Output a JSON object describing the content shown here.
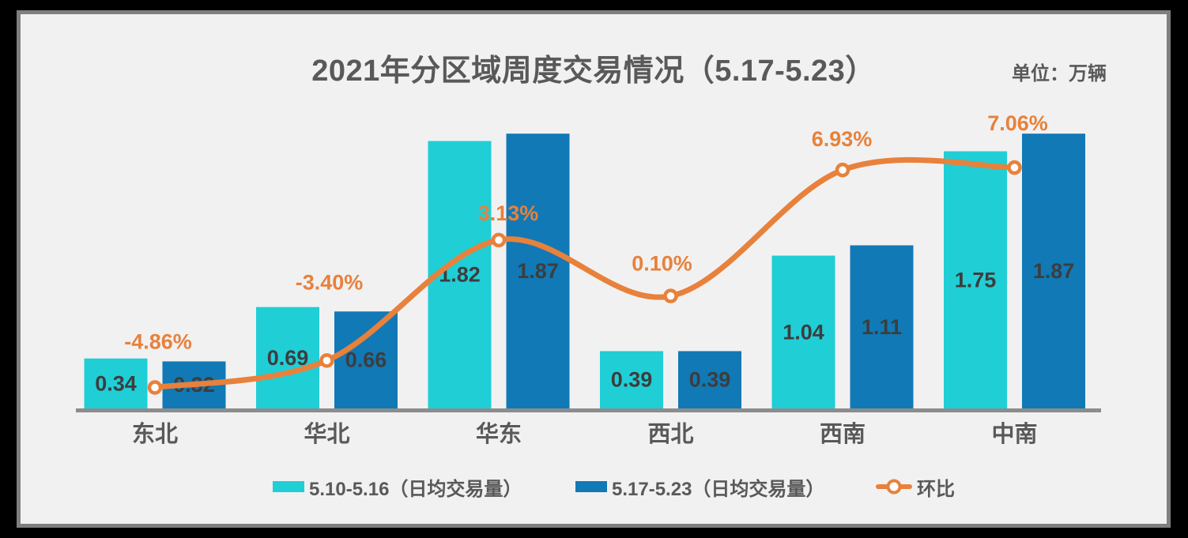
{
  "page": {
    "background": "#000000",
    "panel_background": "#F1F1F2",
    "panel_border_color": "#7F7F7F"
  },
  "header": {
    "title": "2021年分区域周度交易情况（5.17-5.23）",
    "unit_label": "单位：万辆"
  },
  "chart_data": {
    "type": "bar",
    "subtype": "grouped-bar-with-line-overlay",
    "title": "2021年分区域周度交易情况（5.17-5.23）",
    "unit": "万辆",
    "categories": [
      "东北",
      "华北",
      "华东",
      "西北",
      "西南",
      "中南"
    ],
    "series": [
      {
        "name": "5.10-5.16（日均交易量）",
        "type": "bar",
        "color": "#20CED6",
        "values": [
          0.34,
          0.69,
          1.82,
          0.39,
          1.04,
          1.75
        ],
        "labels": [
          "0.34",
          "0.69",
          "1.82",
          "0.39",
          "1.04",
          "1.75"
        ]
      },
      {
        "name": "5.17-5.23（日均交易量）",
        "type": "bar",
        "color": "#1179B5",
        "values": [
          0.32,
          0.66,
          1.87,
          0.39,
          1.11,
          1.87
        ],
        "labels": [
          "0.32",
          "0.66",
          "1.87",
          "0.39",
          "1.11",
          "1.87"
        ]
      },
      {
        "name": "环比",
        "type": "line",
        "color": "#E8813B",
        "marker": "circle-open",
        "values": [
          -4.86,
          -3.4,
          3.13,
          0.1,
          6.93,
          7.06
        ],
        "labels": [
          "-4.86%",
          "-3.40%",
          "3.13%",
          "0.10%",
          "6.93%",
          "7.06%"
        ]
      }
    ],
    "axis": {
      "baseline_color": "#8C8C8C",
      "category_label_color": "#595959",
      "value_label_color": "#3D3D3D",
      "percent_label_color": "#E8813B",
      "grid": false
    },
    "legend_position": "bottom"
  }
}
